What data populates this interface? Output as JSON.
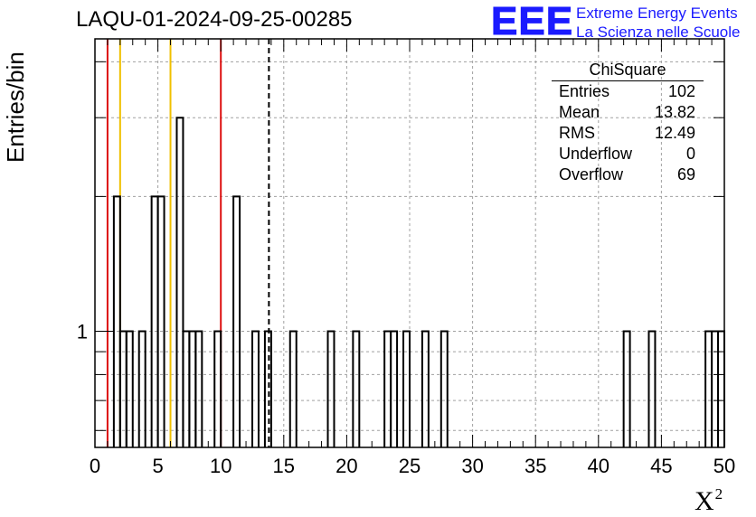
{
  "header": {
    "run_title": "LAQU-01-2024-09-25-00285",
    "logo_mark": "EEE",
    "logo_line1": "Extreme Energy Events",
    "logo_line2": "La Scienza nelle Scuole"
  },
  "stats_box": {
    "title": "ChiSquare",
    "rows": [
      {
        "label": "Entries",
        "value": "102"
      },
      {
        "label": "Mean",
        "value": "13.82"
      },
      {
        "label": "RMS",
        "value": "12.49"
      },
      {
        "label": "Underflow",
        "value": "0"
      },
      {
        "label": "Overflow",
        "value": "69"
      }
    ]
  },
  "colors": {
    "histogram": "#000000",
    "red_line": "#dd1111",
    "yellow_line": "#f0c000",
    "mean_line": "#000000",
    "grid": "#a0a0a0",
    "logo": "#1a1aff"
  },
  "chart_data": {
    "type": "bar",
    "title": "LAQU-01-2024-09-25-00285",
    "xlabel": "X",
    "xlabel_superscript": "2",
    "ylabel": "Entries/bin",
    "xlim": [
      0,
      50
    ],
    "ylim": [
      0.55,
      4.5
    ],
    "y_log_scale": true,
    "grid": true,
    "x_ticks": [
      "0",
      "5",
      "10",
      "15",
      "20",
      "25",
      "30",
      "35",
      "40",
      "45",
      "50"
    ],
    "y_tick_labels": [
      {
        "value": 1,
        "label": "1"
      }
    ],
    "bin_width": 0.5,
    "bins": [
      {
        "x": 1.5,
        "count": 2
      },
      {
        "x": 2.0,
        "count": 1
      },
      {
        "x": 2.5,
        "count": 1
      },
      {
        "x": 3.5,
        "count": 1
      },
      {
        "x": 4.5,
        "count": 2
      },
      {
        "x": 5.0,
        "count": 2
      },
      {
        "x": 6.5,
        "count": 3
      },
      {
        "x": 7.0,
        "count": 1
      },
      {
        "x": 7.5,
        "count": 1
      },
      {
        "x": 8.0,
        "count": 1
      },
      {
        "x": 9.5,
        "count": 1
      },
      {
        "x": 11.0,
        "count": 2
      },
      {
        "x": 12.5,
        "count": 1
      },
      {
        "x": 13.5,
        "count": 1
      },
      {
        "x": 15.5,
        "count": 1
      },
      {
        "x": 18.5,
        "count": 1
      },
      {
        "x": 20.5,
        "count": 1
      },
      {
        "x": 23.0,
        "count": 1
      },
      {
        "x": 23.5,
        "count": 1
      },
      {
        "x": 24.5,
        "count": 1
      },
      {
        "x": 26.0,
        "count": 1
      },
      {
        "x": 27.5,
        "count": 1
      },
      {
        "x": 42.0,
        "count": 1
      },
      {
        "x": 44.0,
        "count": 1
      },
      {
        "x": 48.5,
        "count": 1
      },
      {
        "x": 49.0,
        "count": 1
      },
      {
        "x": 49.5,
        "count": 1
      }
    ],
    "vertical_lines": [
      {
        "x": 1.0,
        "color": "#dd1111",
        "style": "solid"
      },
      {
        "x": 2.0,
        "color": "#f0c000",
        "style": "solid"
      },
      {
        "x": 6.0,
        "color": "#f0c000",
        "style": "solid"
      },
      {
        "x": 10.0,
        "color": "#dd1111",
        "style": "solid"
      },
      {
        "x": 13.82,
        "color": "#000000",
        "style": "dashed"
      }
    ]
  }
}
